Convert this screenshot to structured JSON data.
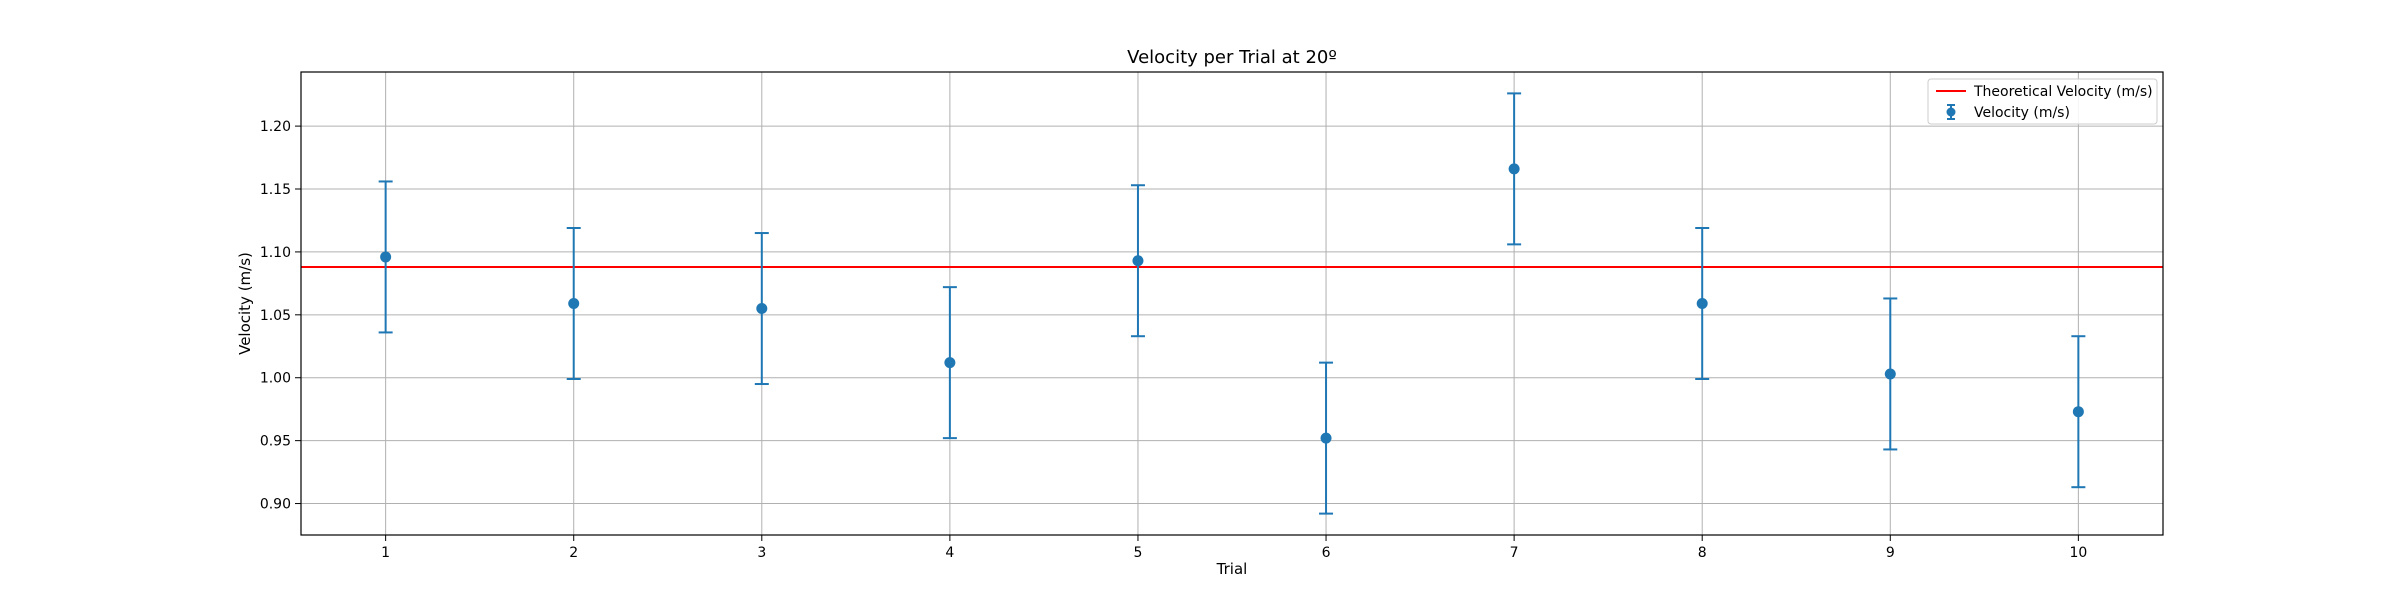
{
  "chart_data": {
    "type": "scatter",
    "title": "Velocity per Trial at 20º",
    "xlabel": "Trial",
    "ylabel": "Velocity (m/s)",
    "xlim": [
      0.55,
      10.45
    ],
    "ylim": [
      0.875,
      1.243
    ],
    "x_ticks": [
      1,
      2,
      3,
      4,
      5,
      6,
      7,
      8,
      9,
      10
    ],
    "x_tick_labels": [
      "1",
      "2",
      "3",
      "4",
      "5",
      "6",
      "7",
      "8",
      "9",
      "10"
    ],
    "y_ticks": [
      0.9,
      0.95,
      1.0,
      1.05,
      1.1,
      1.15,
      1.2
    ],
    "y_tick_labels": [
      "0.90",
      "0.95",
      "1.00",
      "1.05",
      "1.10",
      "1.15",
      "1.20"
    ],
    "grid": true,
    "legend_position": "top-right",
    "series": [
      {
        "name": "Velocity (m/s)",
        "marker": "circle",
        "color": "#1f77b4",
        "x": [
          1,
          2,
          3,
          4,
          5,
          6,
          7,
          8,
          9,
          10
        ],
        "y": [
          1.096,
          1.059,
          1.055,
          1.012,
          1.093,
          0.952,
          1.166,
          1.059,
          1.003,
          0.973
        ],
        "yerr": [
          0.06,
          0.06,
          0.06,
          0.06,
          0.06,
          0.06,
          0.06,
          0.06,
          0.06,
          0.06
        ]
      }
    ],
    "reference_lines": [
      {
        "name": "Theoretical Velocity (m/s)",
        "orientation": "horizontal",
        "y": 1.088,
        "color": "#ff0000"
      }
    ]
  }
}
